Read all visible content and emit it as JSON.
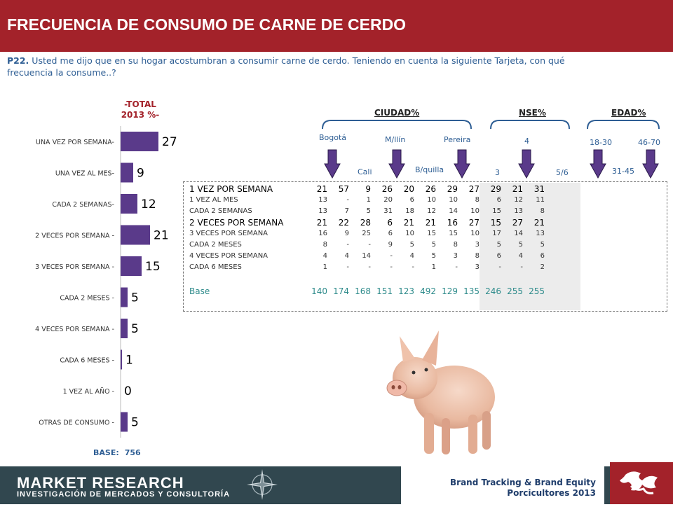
{
  "title": "FRECUENCIA DE CONSUMO DE CARNE DE  CERDO",
  "question": {
    "code": "P22.",
    "text": "Usted me dijo que en su hogar acostumbran a consumir carne de cerdo. Teniendo en cuenta la siguiente Tarjeta, con qué frecuencia la consume..?"
  },
  "total_label_line1": "-TOTAL",
  "total_label_line2": "2013 %-",
  "chart_data": {
    "type": "bar",
    "orientation": "horizontal",
    "title": "-TOTAL 2013 %-",
    "categories": [
      "UNA VEZ POR SEMANA-",
      "UNA VEZ AL MES-",
      "CADA 2 SEMANAS-",
      "2 VECES POR SEMANA -",
      "3 VECES POR SEMANA -",
      "CADA 2 MESES -",
      "4 VECES POR SEMANA -",
      "CADA 6 MESES -",
      "1 VEZ AL AÑO -",
      "OTRAS DE CONSUMO -"
    ],
    "values": [
      27,
      9,
      12,
      21,
      15,
      5,
      5,
      1,
      0,
      5
    ],
    "xlim": [
      0,
      30
    ],
    "bar_color": "#5a3a8a",
    "grid": false
  },
  "base": {
    "label": "BASE:",
    "value": "756"
  },
  "groups": {
    "ciudad": "CIUDAD%",
    "nse": "NSE%",
    "edad": "EDAD%"
  },
  "column_labels": {
    "bogota": "Bogotá",
    "medellin": "M/llín",
    "pereira": "Pereira",
    "cali": "Cali",
    "barranquilla": "B/quilla",
    "nse3": "3",
    "nse4": "4",
    "nse56": "5/6",
    "edad1830": "18-30",
    "edad4670": "46-70",
    "edad3145": "31-45"
  },
  "table": {
    "rows": [
      {
        "label": "1 VEZ POR SEMANA",
        "emph": true,
        "values": [
          "21",
          "57",
          "9",
          "26",
          "20",
          "26",
          "29",
          "27",
          "29",
          "21",
          "31"
        ]
      },
      {
        "label": "1 VEZ AL MES",
        "emph": false,
        "values": [
          "13",
          "-",
          "1",
          "20",
          "6",
          "10",
          "10",
          "8",
          "6",
          "12",
          "11"
        ]
      },
      {
        "label": "CADA 2 SEMANAS",
        "emph": false,
        "values": [
          "13",
          "7",
          "5",
          "31",
          "18",
          "12",
          "14",
          "10",
          "15",
          "13",
          "8"
        ]
      },
      {
        "label": "2 VECES POR SEMANA",
        "emph": true,
        "values": [
          "21",
          "22",
          "28",
          "6",
          "21",
          "21",
          "16",
          "27",
          "15",
          "27",
          "21"
        ]
      },
      {
        "label": "3 VECES POR SEMANA",
        "emph": false,
        "values": [
          "16",
          "9",
          "25",
          "6",
          "10",
          "15",
          "15",
          "10",
          "17",
          "14",
          "13"
        ]
      },
      {
        "label": "CADA 2 MESES",
        "emph": false,
        "values": [
          "8",
          "-",
          "-",
          "9",
          "5",
          "5",
          "8",
          "3",
          "5",
          "5",
          "5"
        ]
      },
      {
        "label": "4 VECES POR SEMANA",
        "emph": false,
        "values": [
          "4",
          "4",
          "14",
          "-",
          "4",
          "5",
          "3",
          "8",
          "6",
          "4",
          "6"
        ]
      },
      {
        "label": "CADA 6 MESES",
        "emph": false,
        "values": [
          "1",
          "-",
          "-",
          "-",
          "-",
          "1",
          "-",
          "3",
          "-",
          "-",
          "2"
        ]
      }
    ],
    "base": {
      "label": "Base",
      "values": [
        "140",
        "174",
        "168",
        "151",
        "123",
        "492",
        "129",
        "135",
        "246",
        "255",
        "255"
      ]
    }
  },
  "footer": {
    "title": "MARKET RESEARCH",
    "subtitle": "INVESTIGACIÓN DE MERCADOS Y CONSULTORÍA",
    "brand_line1": "Brand Tracking & Brand Equity",
    "brand_line2": "Porcicultores 2013"
  },
  "colors": {
    "header": "#a3222a",
    "accent_blue": "#2e5e94",
    "bar": "#5a3a8a",
    "arrow": "#5a3a8a",
    "footer": "#31474f",
    "base_teal": "#2e8b8b"
  },
  "icons": [
    "pig-image",
    "compass-icon",
    "company-logo"
  ]
}
